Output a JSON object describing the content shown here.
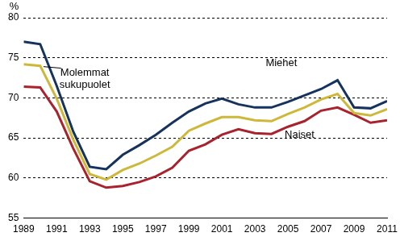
{
  "chart_data": {
    "type": "line",
    "x": [
      1989,
      1990,
      1991,
      1992,
      1993,
      1994,
      1995,
      1996,
      1997,
      1998,
      1999,
      2000,
      2001,
      2002,
      2003,
      2004,
      2005,
      2006,
      2007,
      2008,
      2009,
      2010,
      2011
    ],
    "series": [
      {
        "name": "Miehet",
        "color": "#15335c",
        "values": [
          77.0,
          76.7,
          71.5,
          65.8,
          61.4,
          61.1,
          62.9,
          64.1,
          65.4,
          66.9,
          68.3,
          69.3,
          69.9,
          69.2,
          68.8,
          68.8,
          69.5,
          70.3,
          71.1,
          72.2,
          68.8,
          68.7,
          69.6
        ]
      },
      {
        "name": "Molemmat sukupuolet",
        "color": "#cdb83a",
        "values": [
          74.2,
          74.0,
          69.9,
          64.8,
          60.5,
          59.8,
          61.0,
          61.8,
          62.8,
          63.9,
          65.9,
          66.8,
          67.6,
          67.6,
          67.2,
          67.1,
          68.0,
          68.8,
          69.8,
          70.5,
          68.1,
          67.8,
          68.6
        ]
      },
      {
        "name": "Naiset",
        "color": "#a8232e",
        "values": [
          71.4,
          71.3,
          68.3,
          63.7,
          59.6,
          58.8,
          59.0,
          59.5,
          60.2,
          61.3,
          63.4,
          64.2,
          65.4,
          66.1,
          65.6,
          65.5,
          66.4,
          67.1,
          68.4,
          68.8,
          67.9,
          66.9,
          67.2
        ]
      }
    ],
    "xlim": [
      1989,
      2011
    ],
    "xticks": [
      1989,
      1991,
      1993,
      1995,
      1997,
      1999,
      2001,
      2003,
      2005,
      2007,
      2009,
      2011
    ],
    "ylim": [
      55,
      80
    ],
    "yticks": [
      55,
      60,
      65,
      70,
      75,
      80
    ],
    "y_label": "%",
    "grid": true,
    "annotations": [
      {
        "text": [
          "Molemmat",
          "sukupuolet"
        ],
        "x": 1992.7,
        "y": 72.4,
        "arrow_to": [
          1990.2,
          73.9
        ]
      },
      {
        "text": [
          "Miehet"
        ],
        "x": 2004.6,
        "y": 74.3
      },
      {
        "text": [
          "Naiset"
        ],
        "x": 2005.7,
        "y": 65.4
      }
    ]
  }
}
